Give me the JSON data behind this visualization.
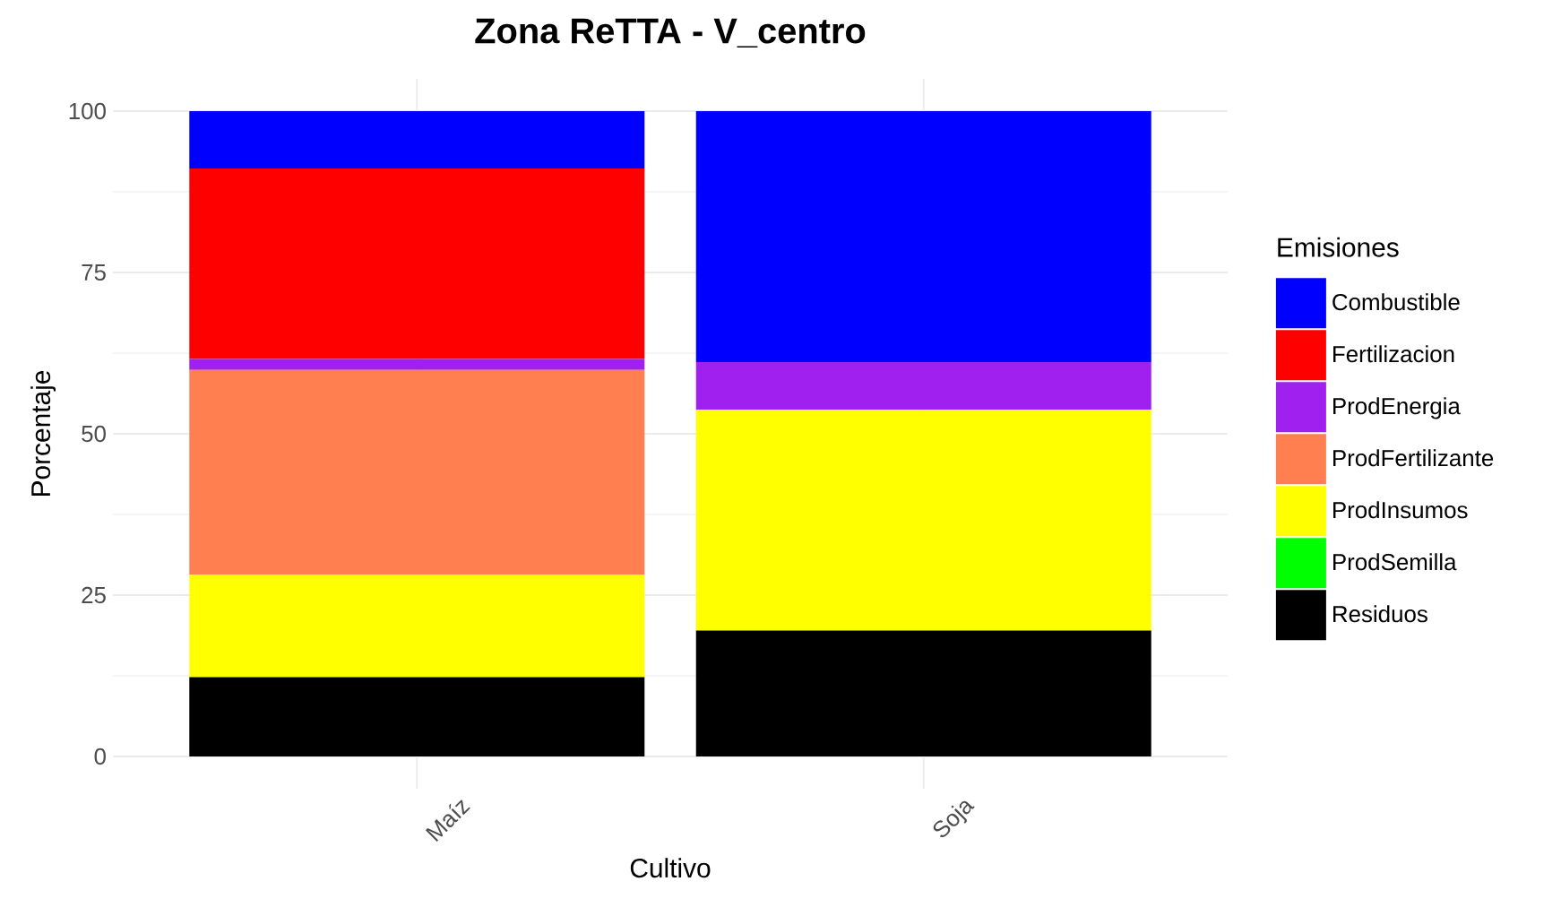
{
  "chart_data": {
    "type": "bar",
    "title": "Zona ReTTA - V_centro",
    "xlabel": "Cultivo",
    "ylabel": "Porcentaje",
    "legend_title": "Emisiones",
    "categories": [
      "Maíz",
      "Soja"
    ],
    "stacked": true,
    "series": [
      {
        "name": "Residuos",
        "color": "#000000",
        "values": [
          12.3,
          19.5
        ]
      },
      {
        "name": "ProdSemilla",
        "color": "#00ff00",
        "values": [
          0,
          0
        ]
      },
      {
        "name": "ProdInsumos",
        "color": "#ffff00",
        "values": [
          15.9,
          34.2
        ]
      },
      {
        "name": "ProdFertilizante",
        "color": "#ff7f50",
        "values": [
          31.7,
          0
        ]
      },
      {
        "name": "ProdEnergia",
        "color": "#a020f0",
        "values": [
          1.7,
          7.4
        ]
      },
      {
        "name": "Fertilizacion",
        "color": "#ff0000",
        "values": [
          29.5,
          0
        ]
      },
      {
        "name": "Combustible",
        "color": "#0000ff",
        "values": [
          8.9,
          38.9
        ]
      }
    ],
    "ylim": [
      -5,
      105
    ],
    "yticks": [
      0,
      25,
      50,
      75,
      100
    ],
    "grid": true,
    "legend": "right"
  }
}
